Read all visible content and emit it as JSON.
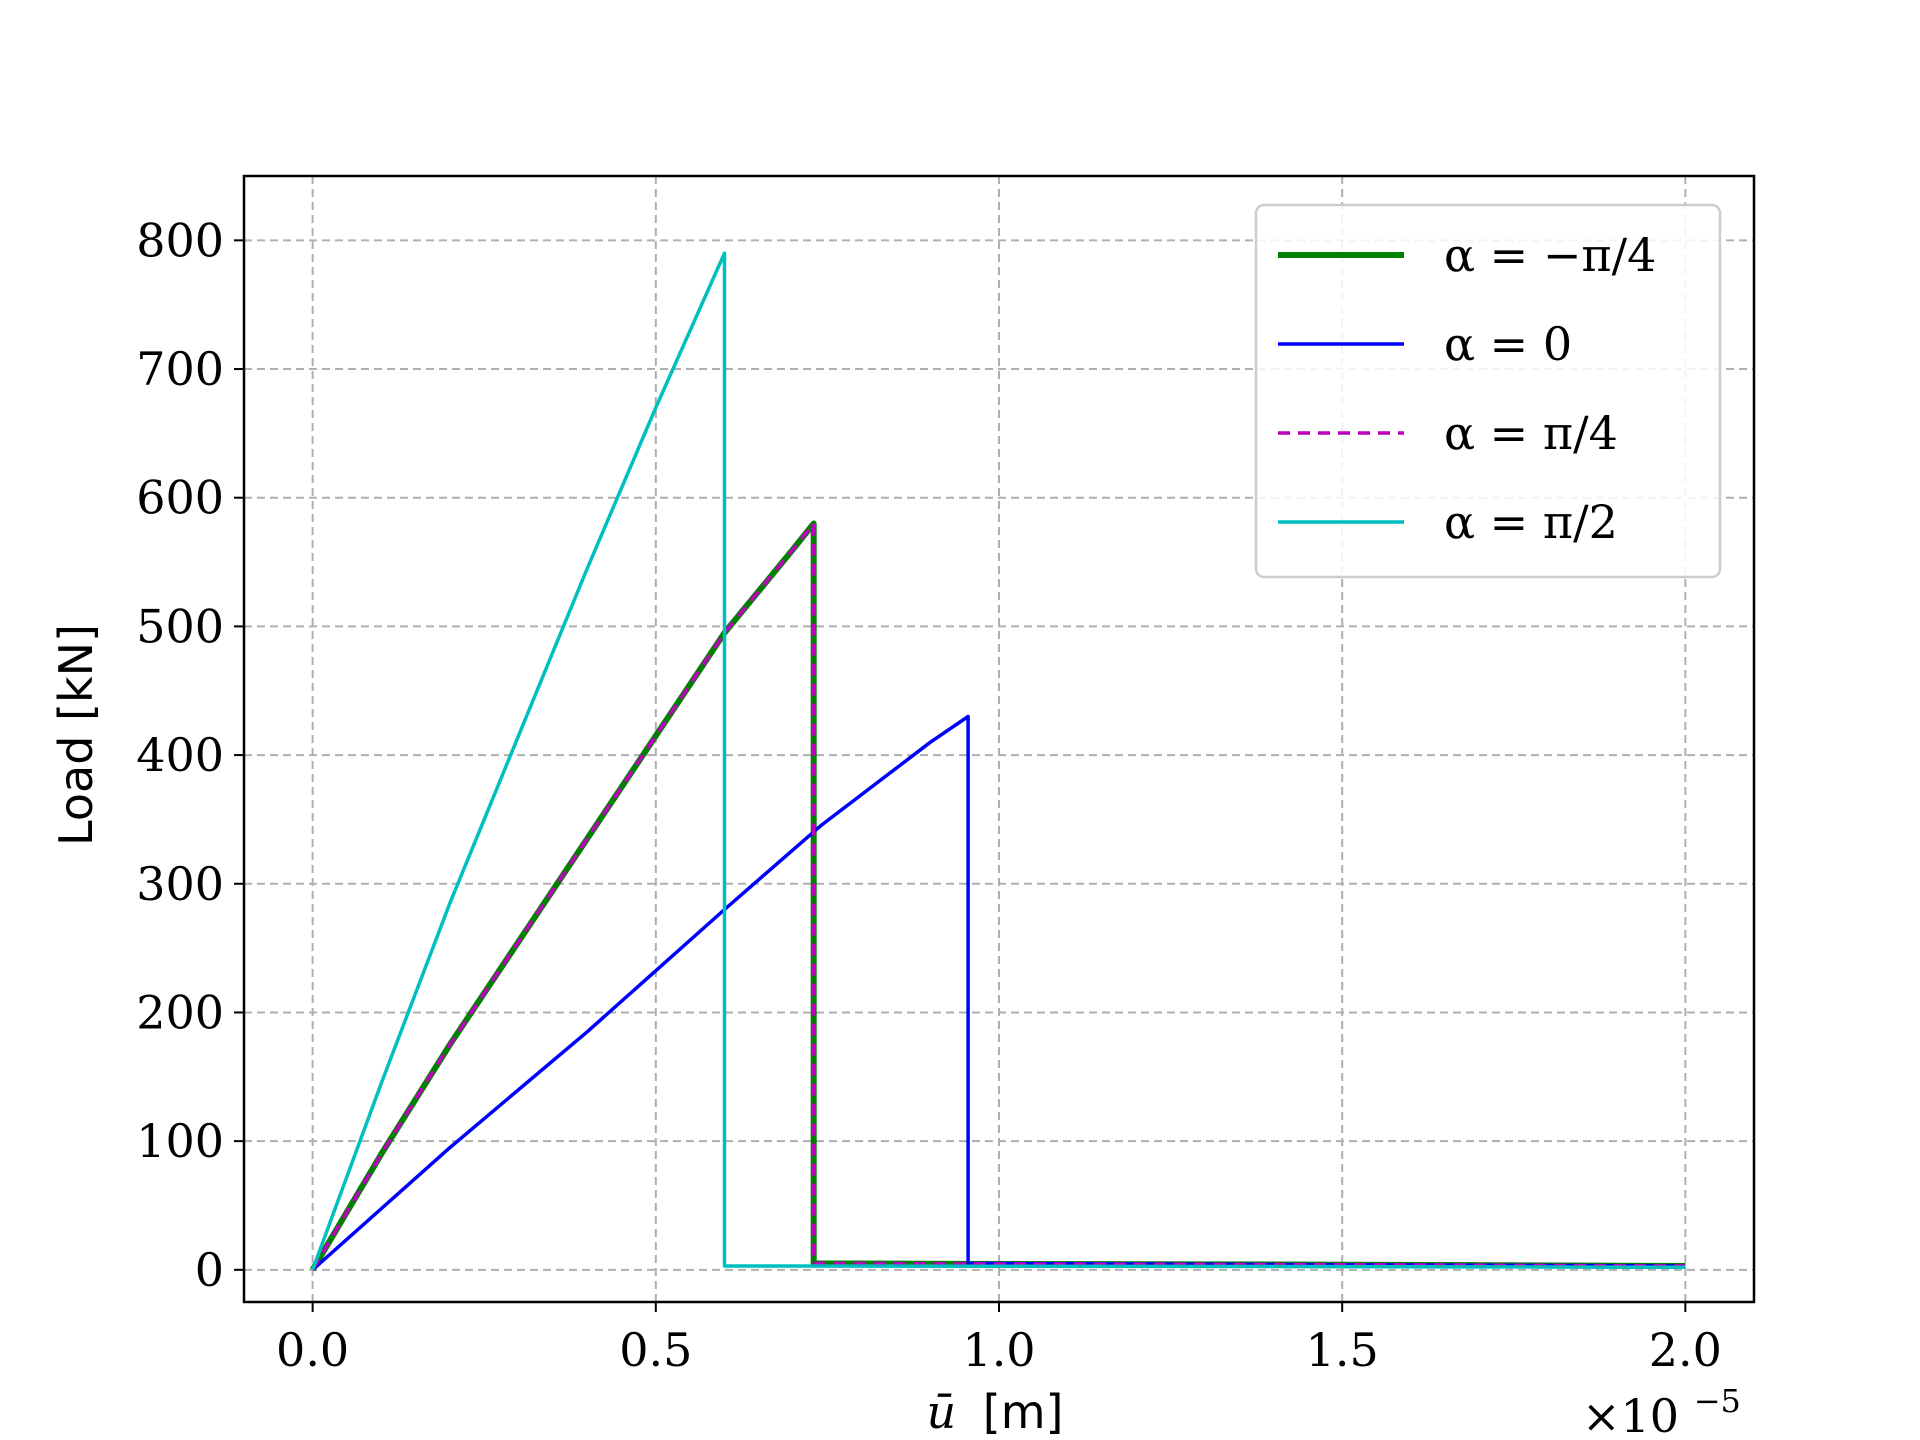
{
  "chart_data": {
    "type": "line",
    "title": "",
    "xlabel_symbol": "ū",
    "xlabel_unit": "[m]",
    "ylabel": "Load [kN]",
    "x_multiplier": "×10",
    "x_multiplier_exponent": "−5",
    "xlim": [
      -0.1,
      2.1
    ],
    "ylim": [
      -25,
      850
    ],
    "x_ticks": [
      0.0,
      0.5,
      1.0,
      1.5,
      2.0
    ],
    "x_tick_labels": [
      "0.0",
      "0.5",
      "1.0",
      "1.5",
      "2.0"
    ],
    "y_ticks": [
      0,
      100,
      200,
      300,
      400,
      500,
      600,
      700,
      800
    ],
    "y_tick_labels": [
      "0",
      "100",
      "200",
      "300",
      "400",
      "500",
      "600",
      "700",
      "800"
    ],
    "grid": true,
    "legend_position": "top-right",
    "series": [
      {
        "name": "α = −π/4",
        "color": "#008000",
        "dash": "solid",
        "width": "thick",
        "points": [
          [
            0.0,
            0
          ],
          [
            0.1,
            90
          ],
          [
            0.2,
            175
          ],
          [
            0.3,
            255
          ],
          [
            0.4,
            335
          ],
          [
            0.5,
            415
          ],
          [
            0.6,
            495
          ],
          [
            0.7,
            560
          ],
          [
            0.73,
            580
          ],
          [
            0.73,
            5
          ],
          [
            1.0,
            4.5
          ],
          [
            1.5,
            4
          ],
          [
            2.0,
            3
          ]
        ]
      },
      {
        "name": "α = 0",
        "color": "#0000ff",
        "dash": "solid",
        "width": "normal",
        "points": [
          [
            0.0,
            0
          ],
          [
            0.2,
            95
          ],
          [
            0.4,
            185
          ],
          [
            0.6,
            280
          ],
          [
            0.74,
            345
          ],
          [
            0.9,
            410
          ],
          [
            0.955,
            430
          ],
          [
            0.955,
            5
          ],
          [
            1.5,
            4
          ],
          [
            2.0,
            3
          ]
        ]
      },
      {
        "name": "α = π/4",
        "color": "#bf00bf",
        "dash": "dashed",
        "width": "normal",
        "points": [
          [
            0.0,
            0
          ],
          [
            0.1,
            90
          ],
          [
            0.2,
            175
          ],
          [
            0.3,
            255
          ],
          [
            0.4,
            335
          ],
          [
            0.5,
            415
          ],
          [
            0.6,
            495
          ],
          [
            0.7,
            560
          ],
          [
            0.73,
            580
          ],
          [
            0.73,
            5
          ],
          [
            1.0,
            4.5
          ],
          [
            1.5,
            4
          ],
          [
            2.0,
            3
          ]
        ]
      },
      {
        "name": "α = π/2",
        "color": "#00bfbf",
        "dash": "solid",
        "width": "normal",
        "points": [
          [
            0.0,
            0
          ],
          [
            0.1,
            145
          ],
          [
            0.2,
            285
          ],
          [
            0.3,
            415
          ],
          [
            0.4,
            545
          ],
          [
            0.5,
            670
          ],
          [
            0.6,
            790
          ],
          [
            0.6,
            3
          ],
          [
            1.0,
            2.8
          ],
          [
            1.5,
            2.5
          ],
          [
            2.0,
            2
          ]
        ]
      }
    ]
  }
}
